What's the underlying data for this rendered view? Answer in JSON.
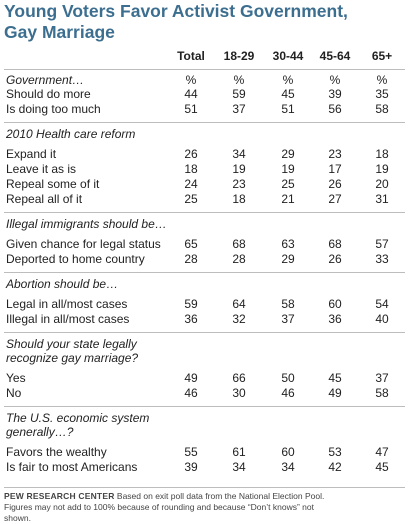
{
  "title_line1": "Young Voters Favor Activist Government,",
  "title_line2": "Gay Marriage",
  "columns": [
    "Total",
    "18-29",
    "30-44",
    "45-64",
    "65+"
  ],
  "sections": [
    {
      "question": "Government…",
      "pct": [
        "%",
        "%",
        "%",
        "%",
        "%"
      ],
      "rows": [
        {
          "label": "Should do more",
          "values": [
            "44",
            "59",
            "45",
            "39",
            "35"
          ]
        },
        {
          "label": "Is doing too much",
          "values": [
            "51",
            "37",
            "51",
            "56",
            "58"
          ]
        }
      ]
    },
    {
      "question": "2010 Health care reform",
      "rows": [
        {
          "label": "Expand it",
          "values": [
            "26",
            "34",
            "29",
            "23",
            "18"
          ]
        },
        {
          "label": "Leave it as is",
          "values": [
            "18",
            "19",
            "19",
            "17",
            "19"
          ]
        },
        {
          "label": "Repeal some of it",
          "values": [
            "24",
            "23",
            "25",
            "26",
            "20"
          ]
        },
        {
          "label": "Repeal all of it",
          "values": [
            "25",
            "18",
            "21",
            "27",
            "31"
          ]
        }
      ]
    },
    {
      "question": "Illegal immigrants should be…",
      "rows": [
        {
          "label": "Given chance for legal status",
          "values": [
            "65",
            "68",
            "63",
            "68",
            "57"
          ]
        },
        {
          "label": "Deported to home country",
          "values": [
            "28",
            "28",
            "29",
            "26",
            "33"
          ]
        }
      ]
    },
    {
      "question": "Abortion should be…",
      "rows": [
        {
          "label": "Legal in all/most cases",
          "values": [
            "59",
            "64",
            "58",
            "60",
            "54"
          ]
        },
        {
          "label": "Illegal in all/most cases",
          "values": [
            "36",
            "32",
            "37",
            "36",
            "40"
          ]
        }
      ]
    },
    {
      "question": "Should your state legally recognize gay marriage?",
      "question_lines": [
        "Should your state legally",
        "recognize gay marriage?"
      ],
      "rows": [
        {
          "label": "Yes",
          "values": [
            "49",
            "66",
            "50",
            "45",
            "37"
          ]
        },
        {
          "label": "No",
          "values": [
            "46",
            "30",
            "46",
            "49",
            "58"
          ]
        }
      ]
    },
    {
      "question": "The U.S. economic system generally…?",
      "question_lines": [
        "The U.S. economic system",
        "generally…?"
      ],
      "rows": [
        {
          "label": "Favors the wealthy",
          "values": [
            "55",
            "61",
            "60",
            "53",
            "47"
          ]
        },
        {
          "label": "Is fair to most Americans",
          "values": [
            "39",
            "34",
            "34",
            "42",
            "45"
          ]
        }
      ]
    }
  ],
  "footer": {
    "org": "PEW RESEARCH CENTER",
    "note_line1": " Based on exit poll data from the National Election Pool.",
    "note_line2": "Figures may not add to 100% because of rounding and because “Don’t knows” not",
    "note_line3": "shown."
  }
}
